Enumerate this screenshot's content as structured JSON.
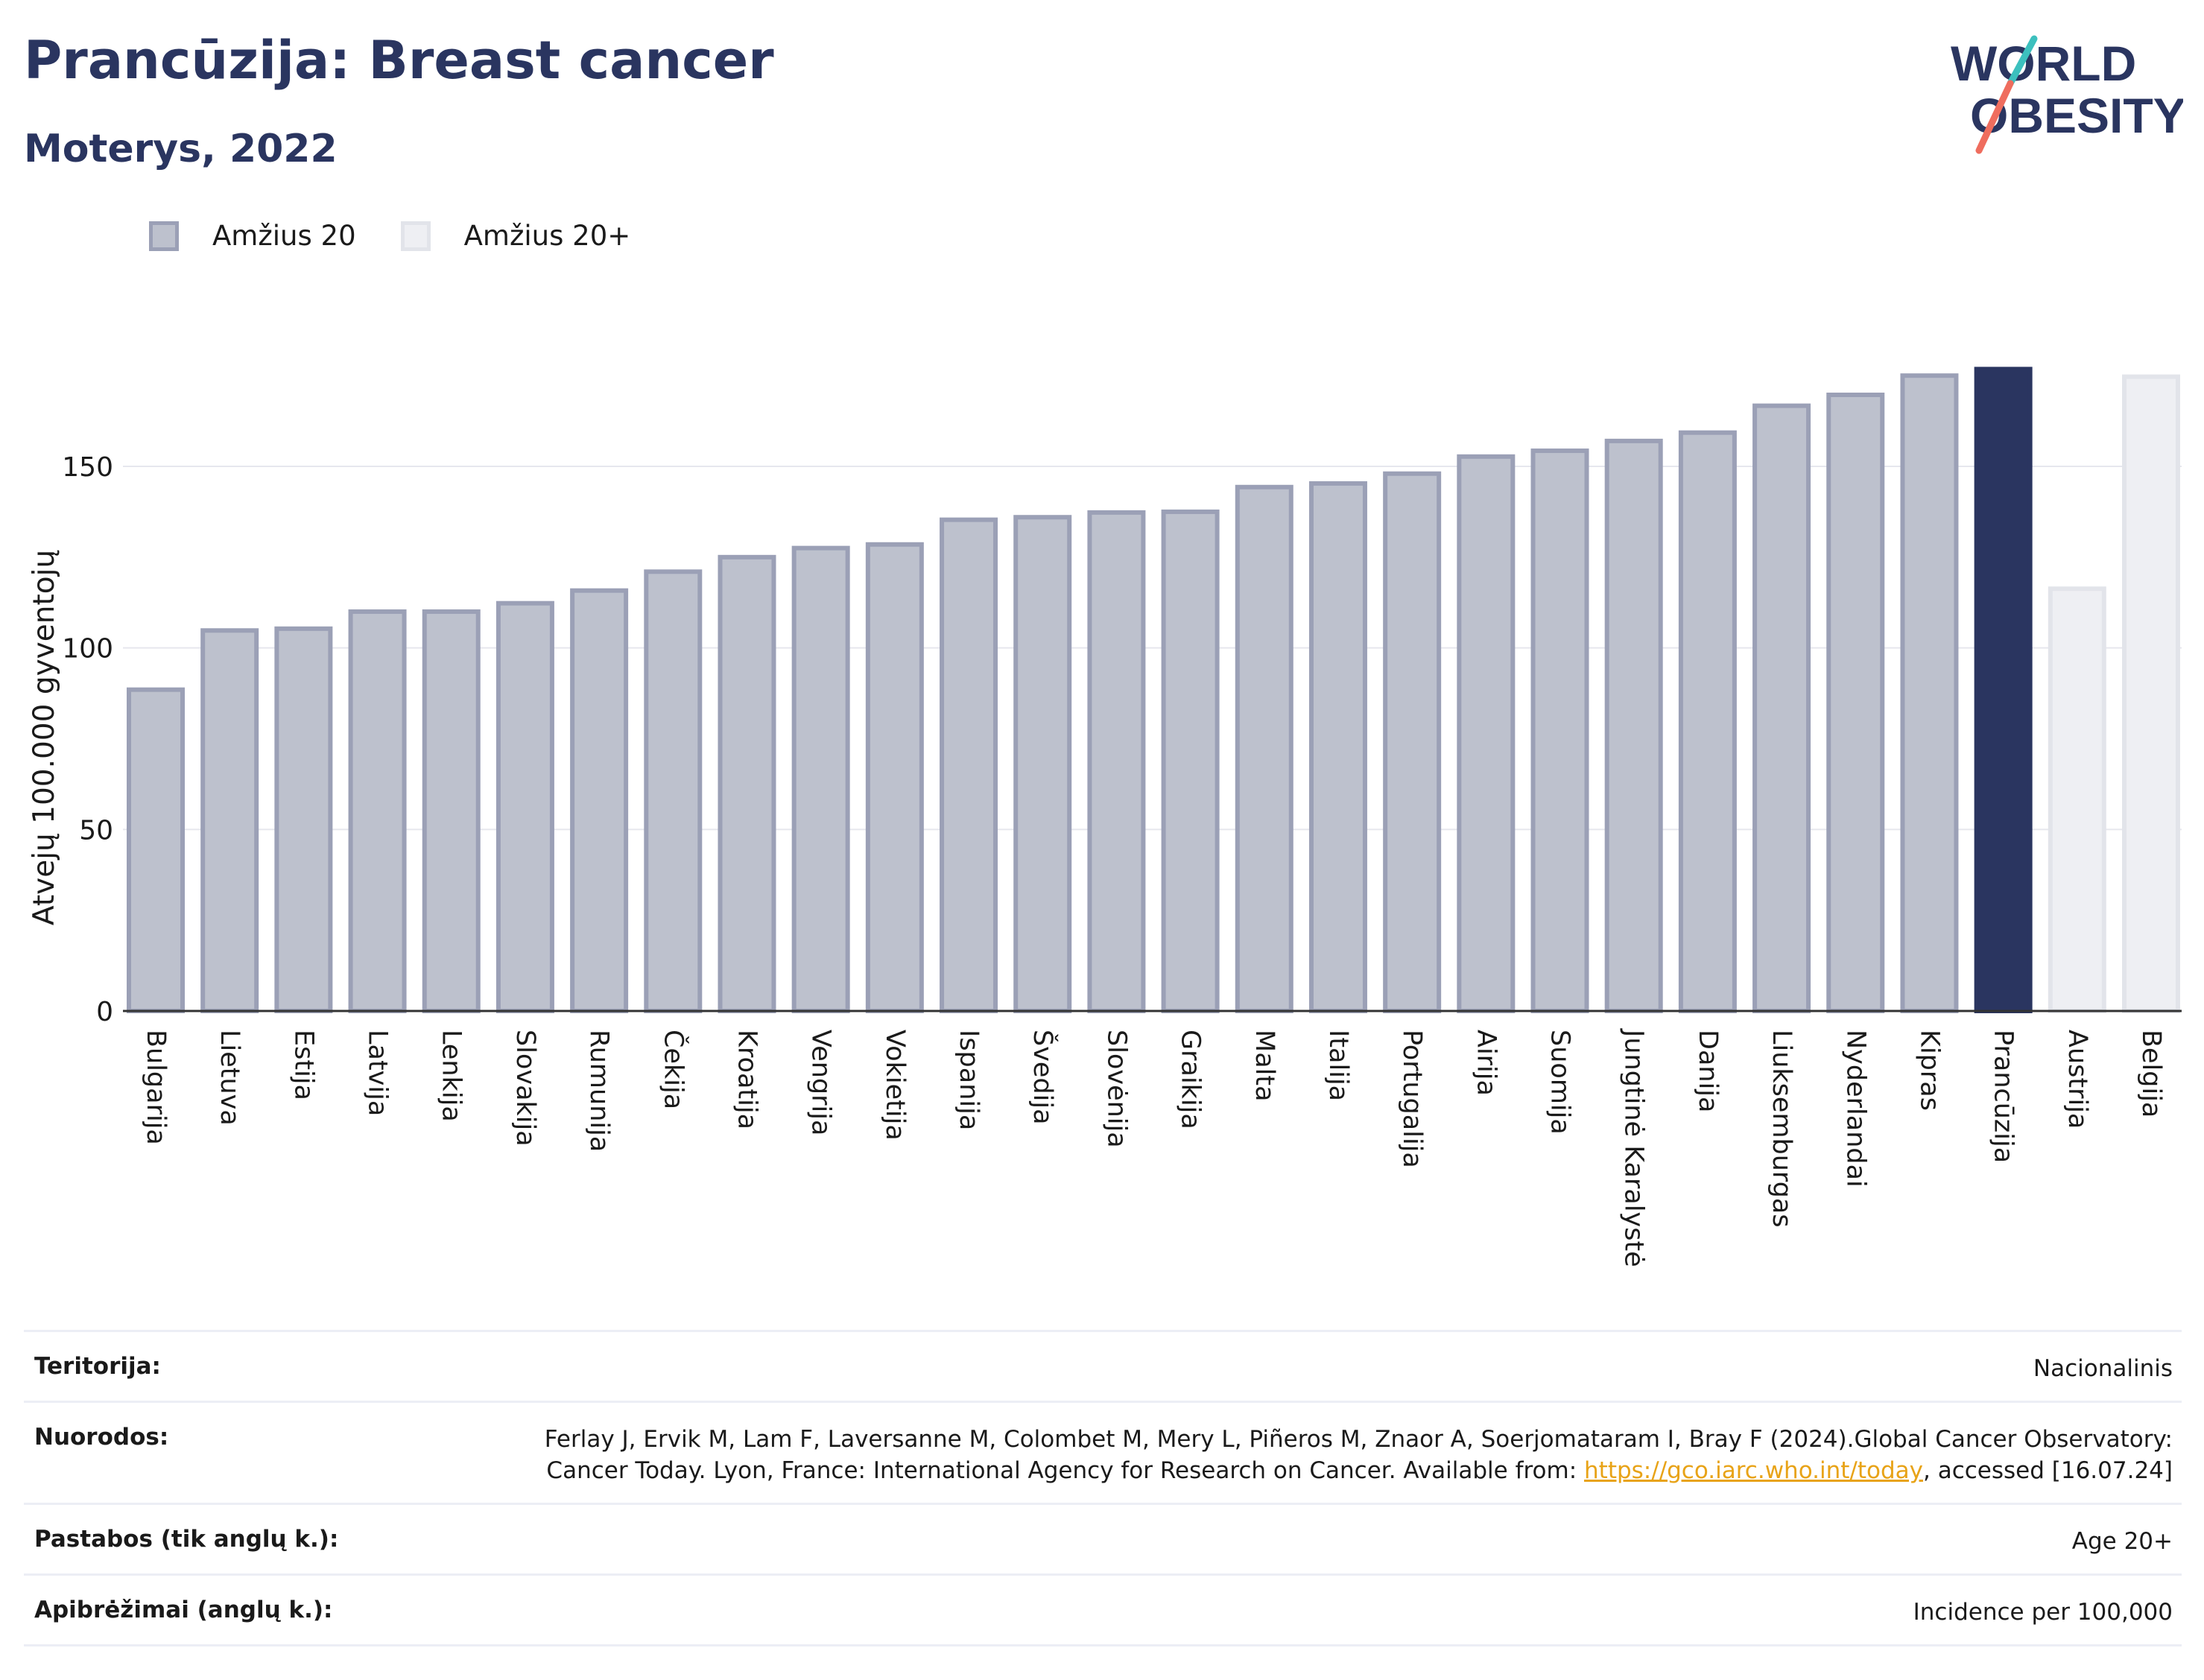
{
  "header": {
    "title": "Prancūzija: Breast cancer",
    "subtitle": "Moterys, 2022"
  },
  "logo": {
    "line1": "WORLD",
    "line2": "OBESITY"
  },
  "legend": [
    {
      "label": "Amžius 20",
      "color": "#bdc1cd",
      "border": "#9ba0b6"
    },
    {
      "label": "Amžius 20+",
      "color": "#eeeff3",
      "border": "#e2e4ea"
    }
  ],
  "colors": {
    "primary": "#2a3560",
    "bar_fill": "#bdc1cd",
    "bar_border": "#9ba0b6",
    "bar_alt_fill": "#eeeff3",
    "bar_alt_border": "#e2e4ea",
    "accent_teal": "#3cc0be",
    "accent_coral": "#ef6d5e"
  },
  "chart_data": {
    "type": "bar",
    "title": "Prancūzija: Breast cancer",
    "ylabel": "Atvejų 100.000 gyventojų",
    "xlabel": "",
    "ylim": [
      0,
      185
    ],
    "yticks": [
      0,
      50,
      100,
      150
    ],
    "grid": true,
    "legend_position": "top-left",
    "categories": [
      "Bulgarija",
      "Lietuva",
      "Estija",
      "Latvija",
      "Lenkija",
      "Slovakija",
      "Rumunija",
      "Čekija",
      "Kroatija",
      "Vengrija",
      "Vokietija",
      "Ispanija",
      "Švedija",
      "Slovėnija",
      "Graikija",
      "Malta",
      "Italija",
      "Portugalija",
      "Airija",
      "Suomija",
      "Jungtinė Karalystė",
      "Danija",
      "Liuksemburgas",
      "Nyderlandai",
      "Kipras",
      "Prancūzija",
      "Austrija",
      "Belgija"
    ],
    "values": [
      88.5,
      104.8,
      105.3,
      110,
      110,
      112.3,
      115.8,
      121,
      125,
      127.5,
      128.5,
      135.3,
      136,
      137.3,
      137.5,
      144.3,
      145.3,
      148,
      152.7,
      154.3,
      157,
      159.3,
      166.7,
      169.7,
      175,
      176.8,
      116.3,
      174.7
    ],
    "series_group": [
      "Amžius 20",
      "Amžius 20",
      "Amžius 20",
      "Amžius 20",
      "Amžius 20",
      "Amžius 20",
      "Amžius 20",
      "Amžius 20",
      "Amžius 20",
      "Amžius 20",
      "Amžius 20",
      "Amžius 20",
      "Amžius 20",
      "Amžius 20",
      "Amžius 20",
      "Amžius 20",
      "Amžius 20",
      "Amžius 20",
      "Amžius 20",
      "Amžius 20",
      "Amžius 20",
      "Amžius 20",
      "Amžius 20",
      "Amžius 20",
      "Amžius 20",
      "highlight",
      "Amžius 20+",
      "Amžius 20+"
    ]
  },
  "footer": {
    "rows": [
      {
        "label": "Teritorija:",
        "value": "Nacionalinis"
      },
      {
        "label": "Nuorodos:",
        "value_pre": "Ferlay J, Ervik M, Lam F, Laversanne M, Colombet M, Mery L, Piñeros M, Znaor A, Soerjomataram I, Bray F (2024).Global Cancer Observatory: Cancer Today. Lyon, France: International Agency for Research on Cancer. Available from: ",
        "link": "https://gco.iarc.who.int/today",
        "value_post": ", accessed [16.07.24]"
      },
      {
        "label": "Pastabos (tik anglų k.):",
        "value": "Age 20+"
      },
      {
        "label": "Apibrėžimai (anglų k.):",
        "value": "Incidence per 100,000"
      }
    ]
  }
}
